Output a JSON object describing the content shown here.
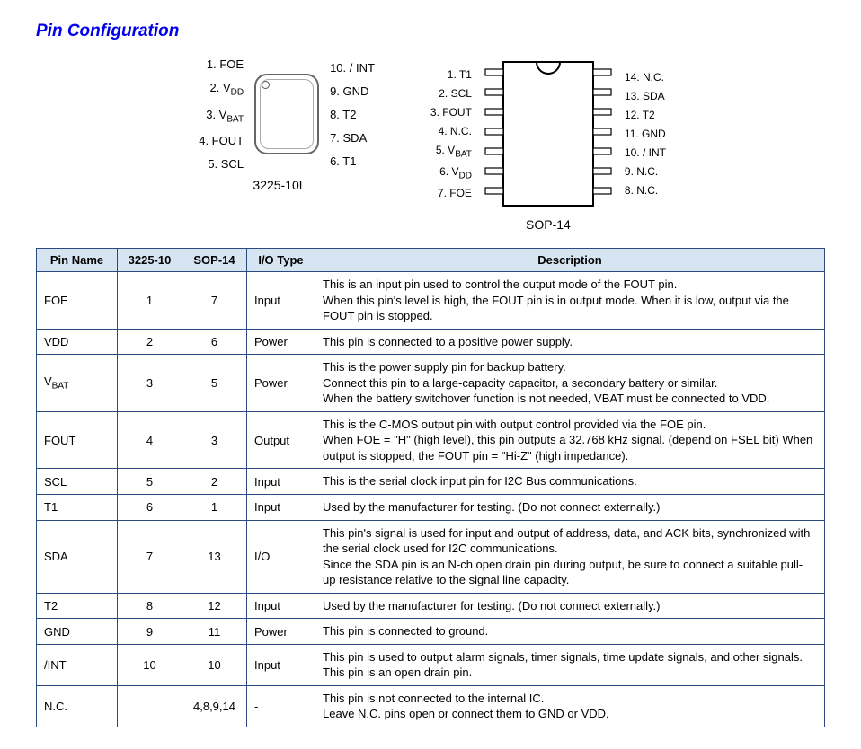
{
  "title": "Pin Configuration",
  "diagram1": {
    "caption": "3225-10L",
    "left_pins": [
      "1. FOE",
      "2. V<sub>DD</sub>",
      "3. V<sub>BAT</sub>",
      "4. FOUT",
      "5. SCL"
    ],
    "right_pins": [
      "10. / INT",
      "9. GND",
      "8. T2",
      "7. SDA",
      "6. T1"
    ]
  },
  "diagram2": {
    "caption": "SOP-14",
    "left_pins": [
      "1. T1",
      "2. SCL",
      "3. FOUT",
      "4. N.C.",
      "5. V<sub>BAT</sub>",
      "6. V<sub>DD</sub>",
      "7. FOE"
    ],
    "right_pins": [
      "14. N.C.",
      "13. SDA",
      "12. T2",
      "11. GND",
      "10. / INT",
      "9. N.C.",
      "8. N.C."
    ]
  },
  "table": {
    "headers": [
      "Pin Name",
      "3225-10",
      "SOP-14",
      "I/O Type",
      "Description"
    ],
    "col_widths": [
      "90px",
      "72px",
      "72px",
      "76px",
      "auto"
    ],
    "rows": [
      {
        "name": "FOE",
        "p3225": "1",
        "sop14": "7",
        "io": "Input",
        "desc": "This is an input pin used to control the output mode of the FOUT pin.<br>When this pin's level is high, the FOUT pin is in output mode. When it is low, output via the FOUT pin is stopped."
      },
      {
        "name": "VDD",
        "p3225": "2",
        "sop14": "6",
        "io": "Power",
        "desc": "This pin is connected to a positive power supply."
      },
      {
        "name": "V<sub>BAT</sub>",
        "p3225": "3",
        "sop14": "5",
        "io": "Power",
        "desc": "This is the power supply pin for backup battery.<br>Connect this pin to a large-capacity capacitor, a secondary battery or similar.<br>When the battery switchover function is not needed, VBAT must be connected to VDD."
      },
      {
        "name": "FOUT",
        "p3225": "4",
        "sop14": "3",
        "io": "Output",
        "desc": "This is the C-MOS output pin with output control provided via the FOE pin.<br>When FOE = \"H\" (high level), this pin outputs a 32.768 kHz signal. (depend on FSEL bit) When output is stopped, the FOUT pin = \"Hi-Z\" (high impedance)."
      },
      {
        "name": "SCL",
        "p3225": "5",
        "sop14": "2",
        "io": "Input",
        "desc": "This is the serial clock input pin for I2C Bus communications."
      },
      {
        "name": "T1",
        "p3225": "6",
        "sop14": "1",
        "io": "Input",
        "desc": "Used by the manufacturer for testing. (Do not connect externally.)"
      },
      {
        "name": "SDA",
        "p3225": "7",
        "sop14": "13",
        "io": "I/O",
        "desc": "This pin's signal is used for input and output of address, data, and ACK bits, synchronized with the serial clock used for I2C communications.<br>Since the SDA pin is an N-ch open drain pin during output, be sure to connect a suitable pull- up resistance relative to the signal line capacity."
      },
      {
        "name": "T2",
        "p3225": "8",
        "sop14": "12",
        "io": "Input",
        "desc": "Used by the manufacturer for testing. (Do not connect externally.)"
      },
      {
        "name": "GND",
        "p3225": "9",
        "sop14": "11",
        "io": "Power",
        "desc": "This pin is connected to ground."
      },
      {
        "name": "/INT",
        "p3225": "10",
        "sop14": "10",
        "io": "Input",
        "desc": "This pin is used to output alarm signals, timer signals, time update signals, and other signals. This pin is an open drain pin."
      },
      {
        "name": "N.C.",
        "p3225": "",
        "sop14": "4,8,9,14",
        "io": "-",
        "desc": "This pin is not connected to the internal IC.<br>Leave N.C. pins open or connect them to GND or VDD."
      }
    ]
  },
  "colors": {
    "title": "#0000ee",
    "table_border": "#2b4a7f",
    "table_header_bg": "#d7e5f3"
  }
}
